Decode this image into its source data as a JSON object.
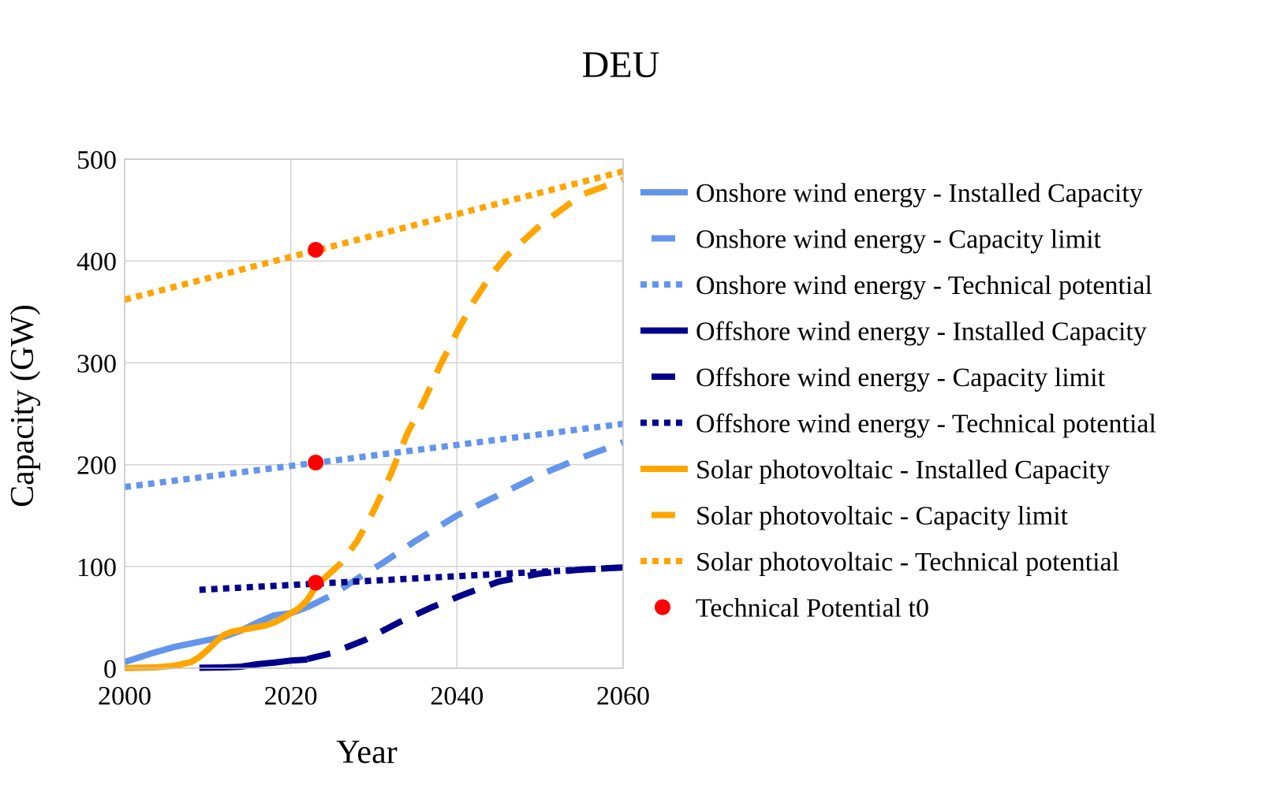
{
  "chart_data": {
    "type": "line",
    "title": "DEU",
    "xlabel": "Year",
    "ylabel": "Capacity (GW)",
    "xlim": [
      2000,
      2060
    ],
    "ylim": [
      0,
      500
    ],
    "xticks": [
      2000,
      2020,
      2040,
      2060
    ],
    "yticks": [
      0,
      100,
      200,
      300,
      400,
      500
    ],
    "grid": true,
    "legend_position": "right",
    "series": [
      {
        "name": "Onshore wind energy - Installed Capacity",
        "color": "#6495ED",
        "dash": "solid",
        "points": [
          [
            2000,
            6
          ],
          [
            2003,
            14
          ],
          [
            2006,
            21
          ],
          [
            2009,
            26
          ],
          [
            2012,
            31
          ],
          [
            2014,
            37
          ],
          [
            2016,
            45
          ],
          [
            2018,
            52
          ],
          [
            2020,
            54
          ],
          [
            2022,
            60
          ]
        ]
      },
      {
        "name": "Onshore wind energy - Capacity limit",
        "color": "#6495ED",
        "dash": "dash",
        "points": [
          [
            2022,
            60
          ],
          [
            2025,
            72
          ],
          [
            2028,
            88
          ],
          [
            2031,
            103
          ],
          [
            2035,
            125
          ],
          [
            2040,
            150
          ],
          [
            2045,
            170
          ],
          [
            2050,
            190
          ],
          [
            2055,
            207
          ],
          [
            2060,
            222
          ]
        ]
      },
      {
        "name": "Onshore wind energy - Technical potential",
        "color": "#6495ED",
        "dash": "dot",
        "points": [
          [
            2000,
            178
          ],
          [
            2060,
            240
          ]
        ]
      },
      {
        "name": "Offshore wind energy - Installed Capacity",
        "color": "#00008B",
        "dash": "solid",
        "points": [
          [
            2009,
            0.5
          ],
          [
            2012,
            0.8
          ],
          [
            2014,
            1.5
          ],
          [
            2016,
            4
          ],
          [
            2018,
            5.5
          ],
          [
            2020,
            7.5
          ],
          [
            2022,
            8.5
          ]
        ]
      },
      {
        "name": "Offshore wind energy - Capacity limit",
        "color": "#00008B",
        "dash": "dash",
        "points": [
          [
            2022,
            9
          ],
          [
            2025,
            15
          ],
          [
            2029,
            28
          ],
          [
            2033,
            45
          ],
          [
            2037,
            60
          ],
          [
            2041,
            73
          ],
          [
            2045,
            85
          ],
          [
            2050,
            93
          ],
          [
            2055,
            97
          ],
          [
            2060,
            99
          ]
        ]
      },
      {
        "name": "Offshore wind energy - Technical potential",
        "color": "#00008B",
        "dash": "dot",
        "points": [
          [
            2009,
            77
          ],
          [
            2060,
            99
          ]
        ]
      },
      {
        "name": "Solar photovoltaic - Installed Capacity",
        "color": "#FFA500",
        "dash": "solid",
        "points": [
          [
            2000,
            0.1
          ],
          [
            2004,
            1
          ],
          [
            2006,
            2.5
          ],
          [
            2008,
            6
          ],
          [
            2009,
            11
          ],
          [
            2010,
            18
          ],
          [
            2011,
            26
          ],
          [
            2012,
            33
          ],
          [
            2013,
            36
          ],
          [
            2015,
            39
          ],
          [
            2017,
            42
          ],
          [
            2018,
            45
          ],
          [
            2019,
            49
          ],
          [
            2020,
            54
          ],
          [
            2021,
            59
          ],
          [
            2022,
            67
          ],
          [
            2023,
            80
          ],
          [
            2024,
            88
          ]
        ]
      },
      {
        "name": "Solar photovoltaic - Capacity limit",
        "color": "#FFA500",
        "dash": "dash",
        "points": [
          [
            2024,
            88
          ],
          [
            2026,
            103
          ],
          [
            2028,
            125
          ],
          [
            2030,
            155
          ],
          [
            2032,
            190
          ],
          [
            2034,
            230
          ],
          [
            2036,
            262
          ],
          [
            2038,
            298
          ],
          [
            2040,
            330
          ],
          [
            2042,
            360
          ],
          [
            2044,
            385
          ],
          [
            2046,
            405
          ],
          [
            2050,
            435
          ],
          [
            2055,
            465
          ],
          [
            2060,
            480
          ]
        ]
      },
      {
        "name": "Solar photovoltaic - Technical potential",
        "color": "#FFA500",
        "dash": "dot",
        "points": [
          [
            2000,
            362
          ],
          [
            2060,
            488
          ]
        ]
      },
      {
        "name": "Technical Potential t0",
        "color": "#FF0000",
        "type": "marker",
        "points": [
          [
            2023,
            411
          ],
          [
            2023,
            202
          ],
          [
            2023,
            84
          ]
        ]
      }
    ]
  }
}
